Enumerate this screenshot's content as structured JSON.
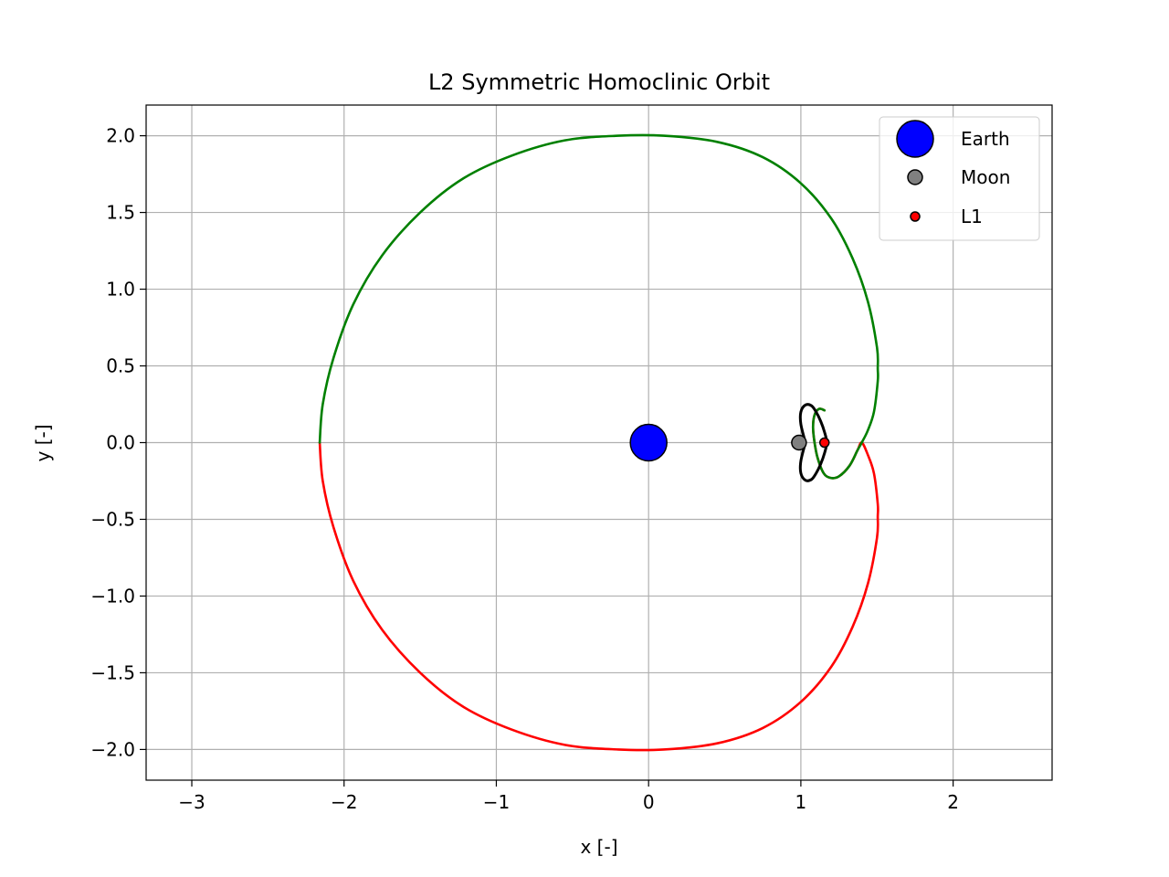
{
  "chart_data": {
    "type": "line",
    "title": "L2 Symmetric Homoclinic Orbit",
    "xlabel": "x [-]",
    "ylabel": "y [-]",
    "xlim": [
      -3.3,
      2.65
    ],
    "ylim": [
      -2.2,
      2.2
    ],
    "xticks": [
      -3,
      -2,
      -1,
      0,
      1,
      2
    ],
    "yticks": [
      -2.0,
      -1.5,
      -1.0,
      -0.5,
      0.0,
      0.5,
      1.0,
      1.5,
      2.0
    ],
    "xtick_labels": [
      "−3",
      "−2",
      "−1",
      "0",
      "1",
      "2"
    ],
    "ytick_labels": [
      "−2.0",
      "−1.5",
      "−1.0",
      "−0.5",
      "0.0",
      "0.5",
      "1.0",
      "1.5",
      "2.0"
    ],
    "grid": true,
    "legend_placement": "upper-right",
    "colors": {
      "unstable_manifold": "#ff0000",
      "stable_manifold": "#008000",
      "periodic_orbit": "#000000",
      "earth": "#0000ff",
      "moon": "#808080",
      "l1": "#ff0000",
      "grid": "#b0b0b0"
    },
    "series": [
      {
        "color": "#ff0000",
        "points": [
          [
            1.155,
            0.21
          ],
          [
            1.12,
            0.22
          ],
          [
            1.09,
            0.18
          ],
          [
            1.08,
            0.1
          ],
          [
            1.09,
            0.0
          ],
          [
            1.11,
            -0.1
          ],
          [
            1.15,
            -0.2
          ],
          [
            1.195,
            -0.23
          ],
          [
            1.25,
            -0.22
          ],
          [
            1.32,
            -0.15
          ],
          [
            1.372,
            -0.05
          ],
          [
            1.4,
            0.0
          ],
          [
            1.44,
            -0.08
          ],
          [
            1.48,
            -0.2
          ],
          [
            1.505,
            -0.4
          ],
          [
            1.505,
            -0.48
          ],
          [
            1.5,
            -0.62
          ],
          [
            1.44,
            -0.92
          ],
          [
            1.34,
            -1.2
          ],
          [
            1.2,
            -1.46
          ],
          [
            1.0,
            -1.69
          ],
          [
            0.75,
            -1.86
          ],
          [
            0.45,
            -1.96
          ],
          [
            0.1,
            -2.0
          ],
          [
            -0.2,
            -2.0
          ],
          [
            -0.55,
            -1.97
          ],
          [
            -0.9,
            -1.87
          ],
          [
            -1.22,
            -1.72
          ],
          [
            -1.5,
            -1.5
          ],
          [
            -1.75,
            -1.22
          ],
          [
            -1.94,
            -0.9
          ],
          [
            -2.07,
            -0.55
          ],
          [
            -2.14,
            -0.25
          ],
          [
            -2.16,
            0.0
          ]
        ]
      },
      {
        "color": "#008000",
        "points": [
          [
            -2.16,
            0.0
          ],
          [
            -2.14,
            0.25
          ],
          [
            -2.07,
            0.55
          ],
          [
            -1.94,
            0.9
          ],
          [
            -1.75,
            1.22
          ],
          [
            -1.5,
            1.5
          ],
          [
            -1.22,
            1.72
          ],
          [
            -0.9,
            1.87
          ],
          [
            -0.55,
            1.97
          ],
          [
            -0.2,
            2.0
          ],
          [
            0.1,
            2.0
          ],
          [
            0.45,
            1.96
          ],
          [
            0.75,
            1.86
          ],
          [
            1.0,
            1.69
          ],
          [
            1.2,
            1.46
          ],
          [
            1.34,
            1.2
          ],
          [
            1.44,
            0.92
          ],
          [
            1.5,
            0.62
          ],
          [
            1.505,
            0.48
          ],
          [
            1.505,
            0.4
          ],
          [
            1.48,
            0.2
          ],
          [
            1.44,
            0.08
          ],
          [
            1.4,
            0.0
          ],
          [
            1.372,
            -0.05
          ],
          [
            1.32,
            -0.15
          ],
          [
            1.25,
            -0.22
          ],
          [
            1.195,
            -0.23
          ],
          [
            1.15,
            -0.2
          ],
          [
            1.11,
            -0.1
          ],
          [
            1.09,
            0.0
          ],
          [
            1.08,
            0.1
          ],
          [
            1.09,
            0.18
          ],
          [
            1.12,
            0.22
          ],
          [
            1.155,
            0.21
          ]
        ]
      },
      {
        "color": "#000000",
        "points": [
          [
            1.03,
            0.0
          ],
          [
            1.0,
            0.12
          ],
          [
            1.0,
            0.2
          ],
          [
            1.03,
            0.245
          ],
          [
            1.07,
            0.24
          ],
          [
            1.1,
            0.2
          ],
          [
            1.13,
            0.14
          ],
          [
            1.155,
            0.07
          ],
          [
            1.17,
            0.0
          ],
          [
            1.155,
            -0.07
          ],
          [
            1.13,
            -0.14
          ],
          [
            1.1,
            -0.2
          ],
          [
            1.07,
            -0.24
          ],
          [
            1.03,
            -0.245
          ],
          [
            1.0,
            -0.2
          ],
          [
            1.0,
            -0.12
          ],
          [
            1.03,
            0.0
          ]
        ]
      }
    ],
    "markers": [
      {
        "name": "Earth",
        "x": 0.0,
        "y": 0.0,
        "color": "#0000ff"
      },
      {
        "name": "Moon",
        "x": 0.9878,
        "y": 0.0,
        "color": "#808080"
      },
      {
        "name": "L1",
        "x": 1.155,
        "y": 0.0,
        "color": "#ff0000"
      }
    ]
  }
}
